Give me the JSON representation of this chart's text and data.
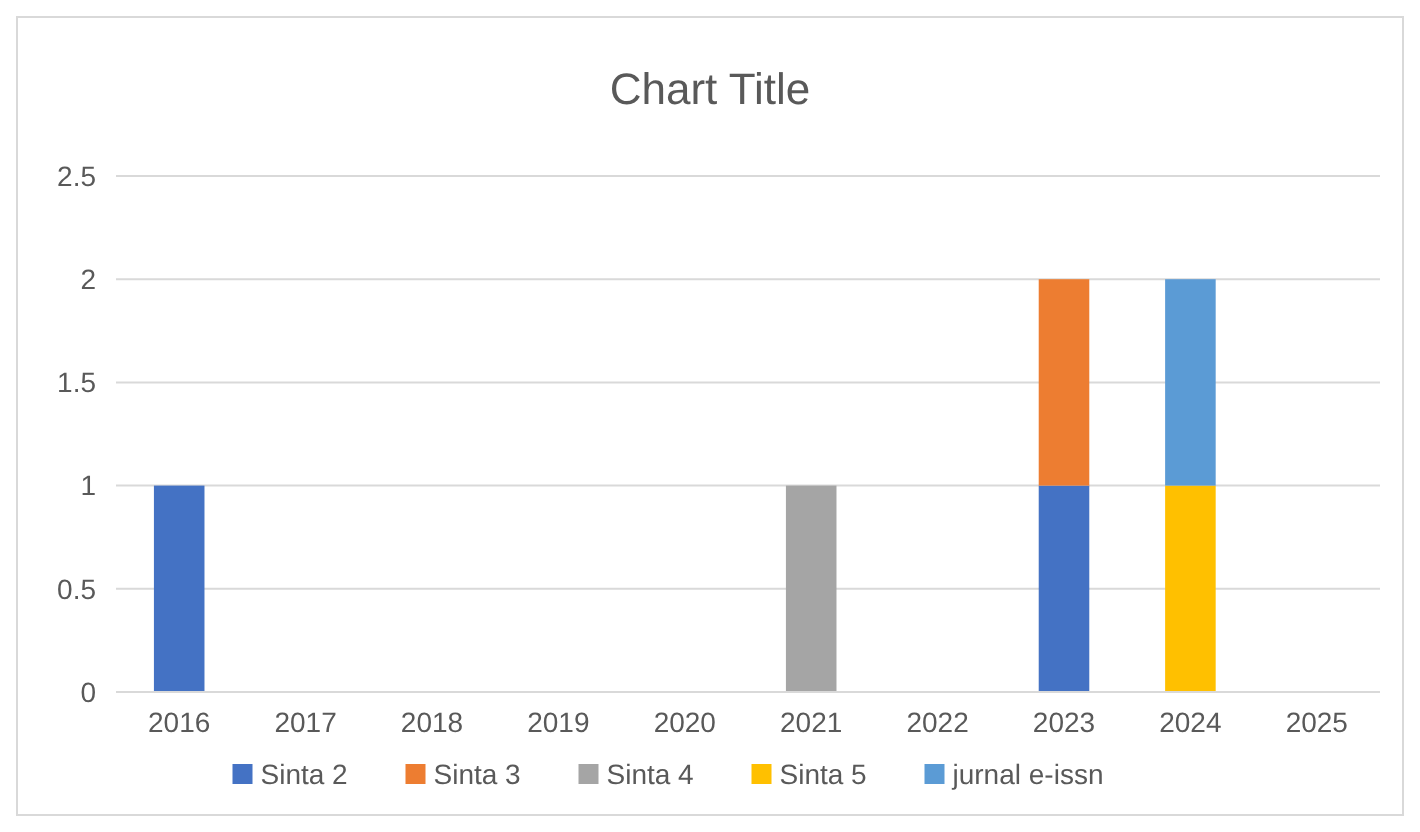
{
  "chart_data": {
    "type": "bar",
    "title": "Chart Title",
    "stacked": true,
    "categories": [
      "2016",
      "2017",
      "2018",
      "2019",
      "2020",
      "2021",
      "2022",
      "2023",
      "2024",
      "2025"
    ],
    "series": [
      {
        "name": "Sinta 2",
        "color": "#4472c4",
        "values": [
          1,
          0,
          0,
          0,
          0,
          0,
          0,
          1,
          0,
          0
        ]
      },
      {
        "name": "Sinta 3",
        "color": "#ed7d31",
        "values": [
          0,
          0,
          0,
          0,
          0,
          0,
          0,
          1,
          0,
          0
        ]
      },
      {
        "name": "Sinta 4",
        "color": "#a5a5a5",
        "values": [
          0,
          0,
          0,
          0,
          0,
          1,
          0,
          0,
          0,
          0
        ]
      },
      {
        "name": "Sinta 5",
        "color": "#ffc000",
        "values": [
          0,
          0,
          0,
          0,
          0,
          0,
          0,
          0,
          1,
          0
        ]
      },
      {
        "name": "jurnal e-issn",
        "color": "#5b9bd5",
        "values": [
          0,
          0,
          0,
          0,
          0,
          0,
          0,
          0,
          1,
          0
        ]
      }
    ],
    "ylim": [
      0,
      2.5
    ],
    "yticks": [
      0,
      0.5,
      1,
      1.5,
      2,
      2.5
    ],
    "grid": "y",
    "legend": "bottom"
  }
}
